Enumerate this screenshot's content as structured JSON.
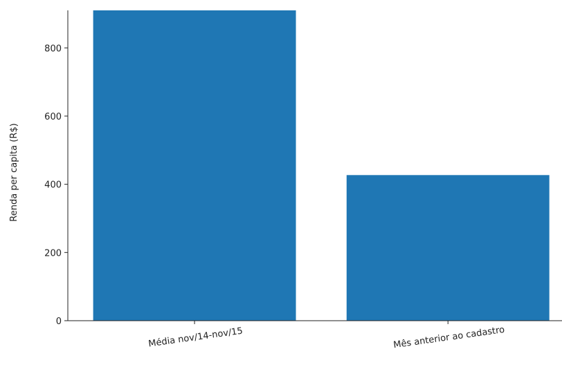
{
  "chart_data": {
    "type": "bar",
    "categories": [
      "Média nov/14-nov/15",
      "Mês anterior ao cadastro"
    ],
    "values": [
      910,
      427
    ],
    "title": "",
    "xlabel": "",
    "ylabel": "Renda per capita (R$)",
    "ylim": [
      0,
      910
    ],
    "yticks": [
      0,
      200,
      400,
      600,
      800
    ],
    "grid": false,
    "legend": "none",
    "bar_color": "#1f77b4",
    "axis_color": "#222222"
  }
}
